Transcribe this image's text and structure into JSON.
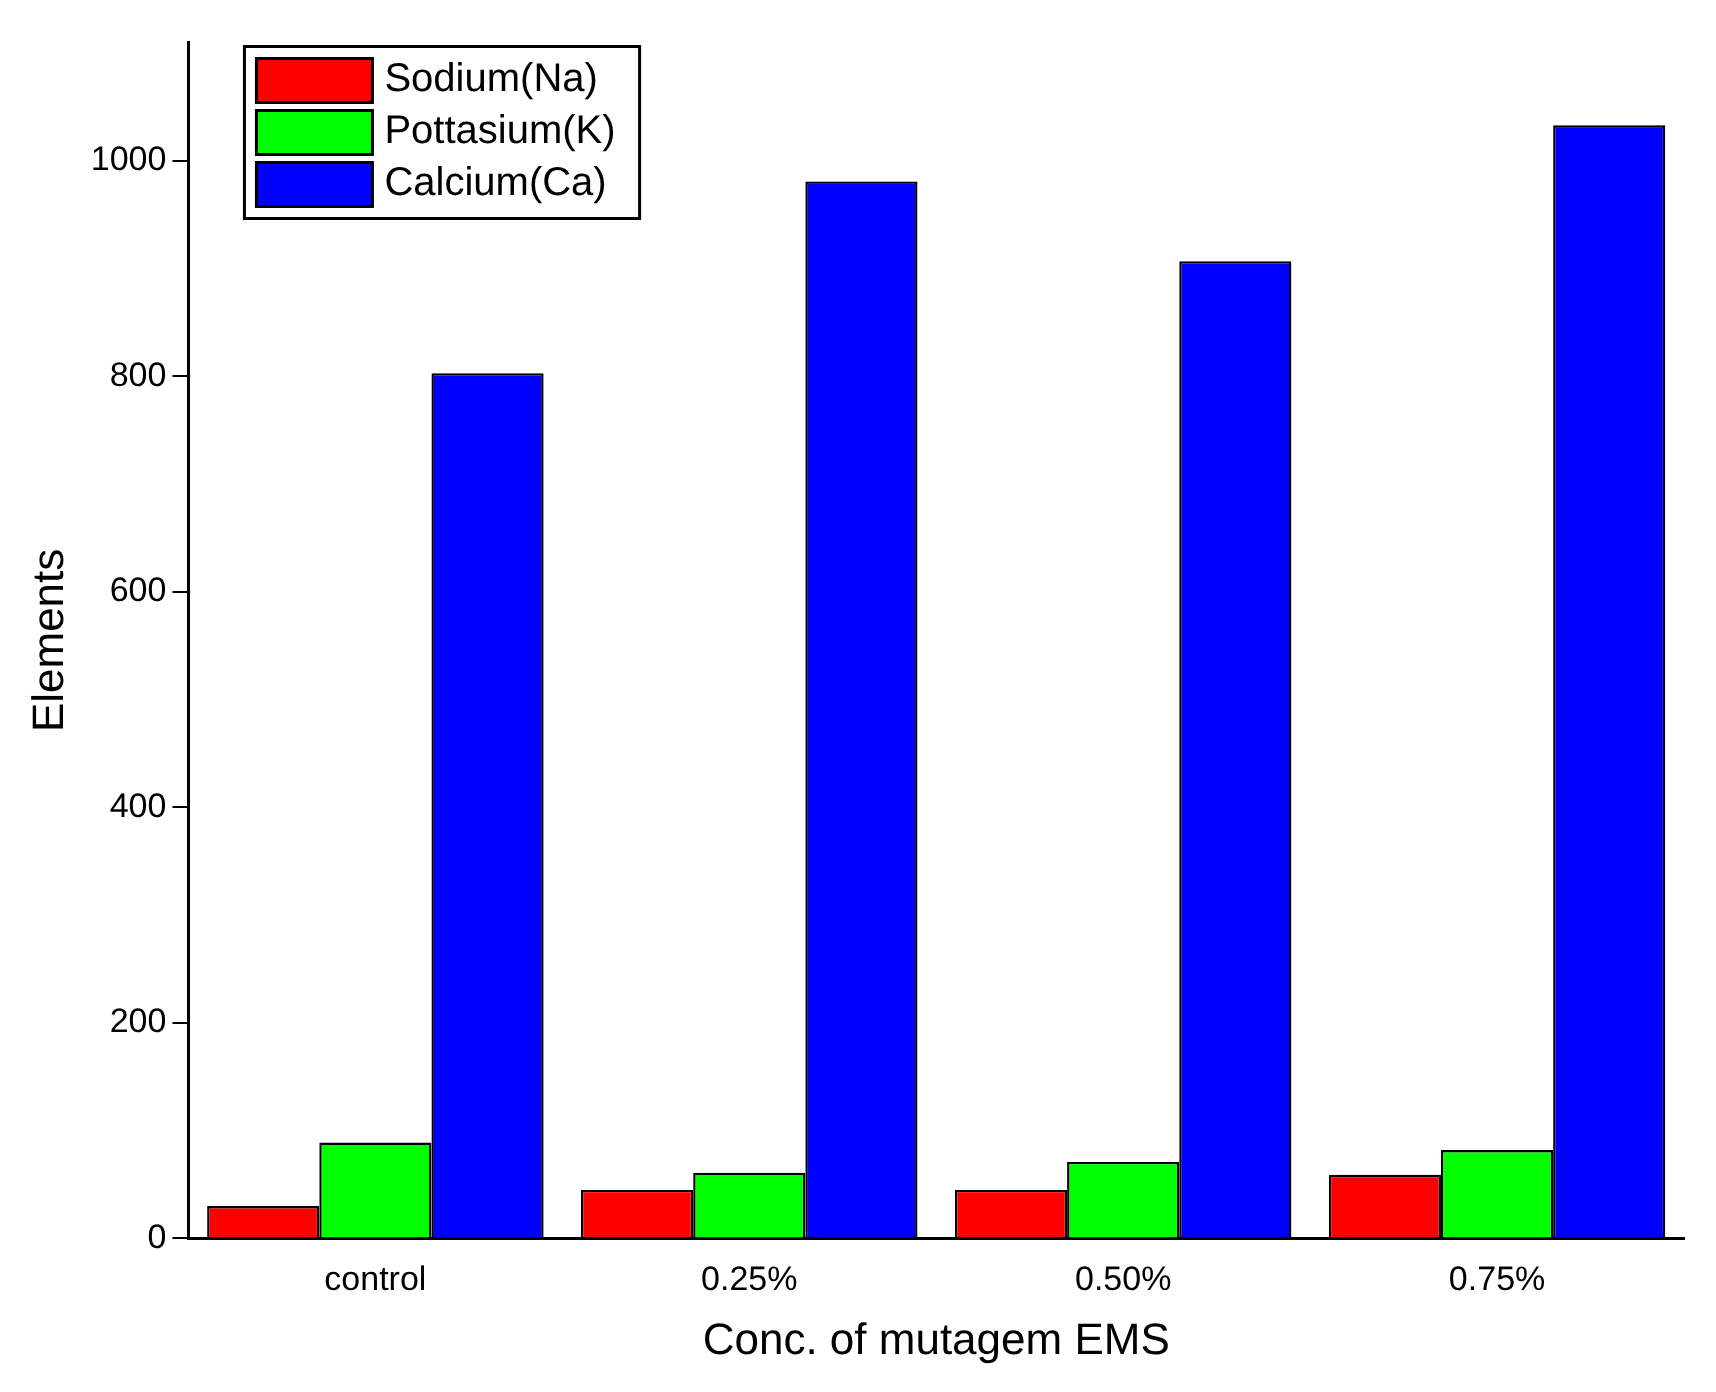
{
  "chart_data": {
    "type": "bar",
    "xlabel": "Conc. of mutagem EMS",
    "ylabel": "Elements",
    "categories": [
      "control",
      "0.25%",
      "0.50%",
      "0.75%"
    ],
    "series": [
      {
        "name": "Sodium(Na)",
        "color": "#ff0000",
        "values": [
          30,
          45,
          45,
          59
        ]
      },
      {
        "name": "Pottasium(K)",
        "color": "#00ff00",
        "values": [
          89,
          61,
          71,
          82
        ]
      },
      {
        "name": "Calcium(Ca)",
        "color": "#0000ff",
        "values": [
          803,
          981,
          907,
          1033
        ]
      }
    ],
    "ylim": [
      0,
      1110
    ],
    "yticks": [
      0,
      200,
      400,
      600,
      800,
      1000
    ],
    "grid": false,
    "legend": "top left"
  }
}
